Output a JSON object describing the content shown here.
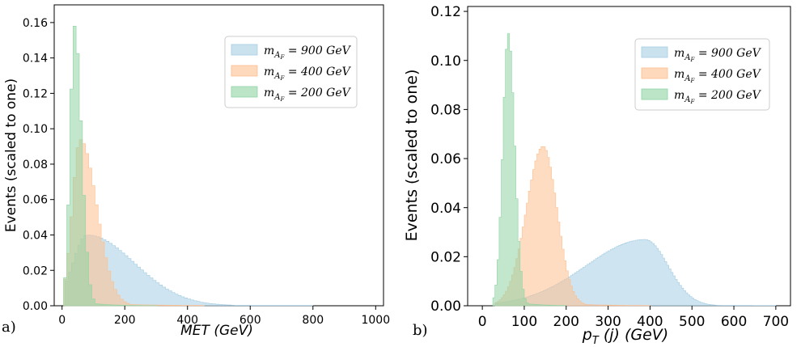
{
  "chart_data": [
    {
      "type": "histogram",
      "panel_label": "a)",
      "xlabel": "MET (GeV)",
      "ylabel": "Events (scaled to one)",
      "xlim": [
        -25,
        1025
      ],
      "ylim": [
        0,
        0.17
      ],
      "xticks": [
        0,
        200,
        400,
        600,
        800,
        1000
      ],
      "yticks": [
        0.0,
        0.02,
        0.04,
        0.06,
        0.08,
        0.1,
        0.12,
        0.14,
        0.16
      ],
      "ytick_labels": [
        "0.00",
        "0.02",
        "0.04",
        "0.06",
        "0.08",
        "0.10",
        "0.12",
        "0.14",
        "0.16"
      ],
      "legend_position": "top-right",
      "series": [
        {
          "name_main": "m",
          "name_sub": "A",
          "name_subsub": "F",
          "name_rest": " = 900 GeV",
          "color": "#a6cee3",
          "shape": {
            "peak": 80,
            "rise": 45,
            "fall": 150,
            "max": 0.04,
            "start": 10,
            "end": 800
          }
        },
        {
          "name_main": "m",
          "name_sub": "A",
          "name_subsub": "F",
          "name_rest": " = 400 GeV",
          "color": "#fdbf8f",
          "shape": {
            "peak": 58,
            "rise": 25,
            "fall": 52,
            "max": 0.094,
            "start": 5,
            "end": 450
          }
        },
        {
          "name_main": "m",
          "name_sub": "A",
          "name_subsub": "F",
          "name_rest": " = 200 GeV",
          "color": "#8fd4a4",
          "shape": {
            "peak": 40,
            "rise": 14,
            "fall": 22,
            "max": 0.158,
            "start": 5,
            "end": 300
          }
        }
      ]
    },
    {
      "type": "histogram",
      "panel_label": "b)",
      "xlabel_main": "p",
      "xlabel_sub": "T",
      "xlabel_rest": " (j) (GeV)",
      "ylabel": "Events (scaled to one)",
      "xlim": [
        -35,
        735
      ],
      "ylim": [
        0,
        0.122
      ],
      "xticks": [
        0,
        100,
        200,
        300,
        400,
        500,
        600,
        700
      ],
      "yticks": [
        0.0,
        0.02,
        0.04,
        0.06,
        0.08,
        0.1,
        0.12
      ],
      "ytick_labels": [
        "0.00",
        "0.02",
        "0.04",
        "0.06",
        "0.08",
        "0.10",
        "0.12"
      ],
      "legend_position": "top-right",
      "series": [
        {
          "name_main": "m",
          "name_sub": "A",
          "name_subsub": "F",
          "name_rest": " = 900 GeV",
          "color": "#a6cee3",
          "shape": {
            "peak": 388,
            "rise": 140,
            "fall": 55,
            "max": 0.027,
            "start": 30,
            "end": 700
          }
        },
        {
          "name_main": "m",
          "name_sub": "A",
          "name_subsub": "F",
          "name_rest": " = 400 GeV",
          "color": "#fdbf8f",
          "shape": {
            "peak": 145,
            "rise": 40,
            "fall": 33,
            "max": 0.065,
            "start": 30,
            "end": 400
          }
        },
        {
          "name_main": "m",
          "name_sub": "A",
          "name_subsub": "F",
          "name_rest": " = 200 GeV",
          "color": "#8fd4a4",
          "shape": {
            "peak": 62,
            "rise": 13,
            "fall": 15,
            "max": 0.111,
            "start": 25,
            "end": 200
          }
        }
      ]
    }
  ]
}
